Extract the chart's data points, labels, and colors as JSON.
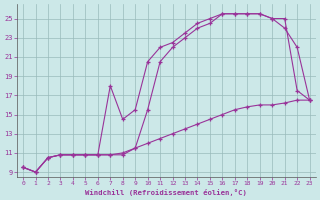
{
  "xlabel": "Windchill (Refroidissement éolien,°C)",
  "bg_color": "#cce8e8",
  "line_color": "#993399",
  "grid_color": "#99bbbb",
  "xlim": [
    -0.5,
    23.5
  ],
  "ylim": [
    8.5,
    26.5
  ],
  "xticks": [
    0,
    1,
    2,
    3,
    4,
    5,
    6,
    7,
    8,
    9,
    10,
    11,
    12,
    13,
    14,
    15,
    16,
    17,
    18,
    19,
    20,
    21,
    22,
    23
  ],
  "yticks": [
    9,
    11,
    13,
    15,
    17,
    19,
    21,
    23,
    25
  ],
  "line1_x": [
    0,
    1,
    2,
    3,
    4,
    5,
    6,
    7,
    8,
    9,
    10,
    11,
    12,
    13,
    14,
    15,
    16,
    17,
    18,
    19,
    20,
    21,
    22,
    23
  ],
  "line1_y": [
    9.5,
    9.0,
    10.5,
    10.8,
    10.8,
    10.8,
    10.8,
    18.0,
    14.5,
    15.5,
    20.5,
    22.0,
    22.5,
    23.5,
    24.5,
    25.0,
    25.5,
    25.5,
    25.5,
    25.5,
    25.0,
    25.0,
    17.5,
    16.5
  ],
  "line2_x": [
    0,
    1,
    2,
    3,
    4,
    5,
    6,
    7,
    8,
    9,
    10,
    11,
    12,
    13,
    14,
    15,
    16,
    17,
    18,
    19,
    20,
    21,
    22,
    23
  ],
  "line2_y": [
    9.5,
    9.0,
    10.5,
    10.8,
    10.8,
    10.8,
    10.8,
    10.8,
    10.8,
    11.5,
    15.5,
    20.5,
    22.0,
    23.0,
    24.0,
    24.5,
    25.5,
    25.5,
    25.5,
    25.5,
    25.0,
    24.0,
    22.0,
    16.5
  ],
  "line3_x": [
    0,
    1,
    2,
    3,
    4,
    5,
    6,
    7,
    8,
    9,
    10,
    11,
    12,
    13,
    14,
    15,
    16,
    17,
    18,
    19,
    20,
    21,
    22,
    23
  ],
  "line3_y": [
    9.5,
    9.0,
    10.5,
    10.8,
    10.8,
    10.8,
    10.8,
    10.8,
    11.0,
    11.5,
    12.0,
    12.5,
    13.0,
    13.5,
    14.0,
    14.5,
    15.0,
    15.5,
    15.8,
    16.0,
    16.0,
    16.2,
    16.5,
    16.5
  ]
}
